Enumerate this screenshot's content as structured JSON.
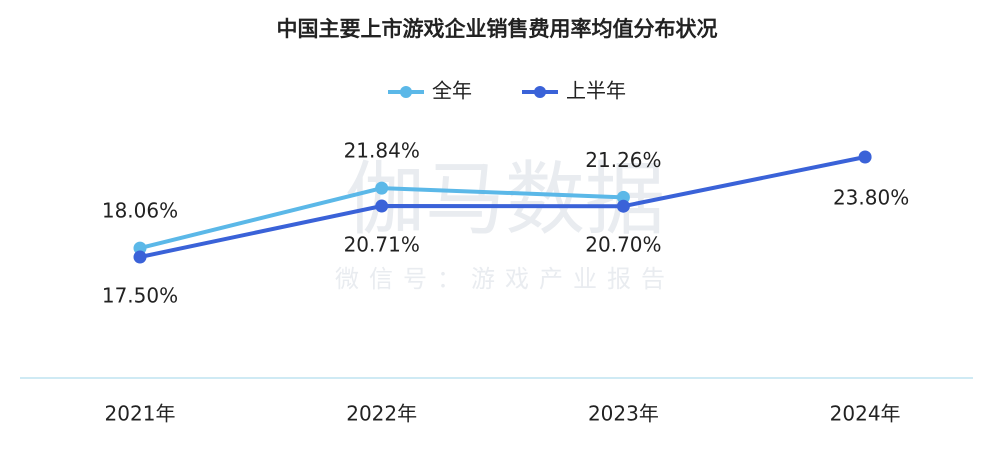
{
  "chart_data": {
    "type": "line",
    "title": "中国主要上市游戏企业销售费用率均值分布状况",
    "categories": [
      "2021年",
      "2022年",
      "2023年",
      "2024年"
    ],
    "series": [
      {
        "name": "全年",
        "color": "#5bb8e8",
        "values": [
          18.06,
          21.84,
          21.26,
          null
        ],
        "value_labels": [
          "18.06%",
          "21.84%",
          "21.26%",
          null
        ]
      },
      {
        "name": "上半年",
        "color": "#3a62d8",
        "values": [
          17.5,
          20.71,
          20.7,
          23.8
        ],
        "value_labels": [
          "17.50%",
          "20.71%",
          "20.70%",
          "23.80%"
        ]
      }
    ],
    "watermark": [
      "伽马数据",
      "微信号：游戏产业报告"
    ]
  }
}
